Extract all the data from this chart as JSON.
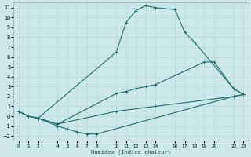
{
  "xlabel": "Humidex (Indice chaleur)",
  "bg_color": "#cce8e8",
  "grid_color": "#b8d8d8",
  "line_color": "#1a6e6e",
  "xlim": [
    -0.5,
    23.5
  ],
  "ylim": [
    -2.5,
    11.5
  ],
  "xticks": [
    0,
    1,
    2,
    4,
    5,
    6,
    7,
    8,
    10,
    11,
    12,
    13,
    14,
    16,
    17,
    18,
    19,
    20,
    22,
    23
  ],
  "yticks": [
    -2,
    -1,
    0,
    1,
    2,
    3,
    4,
    5,
    6,
    7,
    8,
    9,
    10,
    11
  ],
  "lines": [
    {
      "x": [
        0,
        1,
        2,
        10,
        11,
        12,
        13,
        14,
        16,
        17,
        18,
        22,
        23
      ],
      "y": [
        0.5,
        0.0,
        -0.2,
        6.5,
        9.5,
        10.7,
        11.2,
        11.0,
        10.8,
        8.5,
        7.5,
        2.8,
        2.2
      ]
    },
    {
      "x": [
        0,
        1,
        2,
        4,
        10,
        11,
        12,
        13,
        14,
        19,
        20,
        22,
        23
      ],
      "y": [
        0.5,
        0.0,
        -0.2,
        -0.8,
        2.3,
        2.5,
        2.8,
        3.0,
        3.2,
        5.5,
        5.5,
        2.8,
        2.2
      ]
    },
    {
      "x": [
        0,
        1,
        2,
        4,
        5,
        6,
        7,
        8,
        22,
        23
      ],
      "y": [
        0.5,
        0.0,
        -0.2,
        -1.0,
        -1.3,
        -1.6,
        -1.8,
        -1.8,
        2.0,
        2.2
      ]
    },
    {
      "x": [
        0,
        1,
        2,
        4,
        10,
        14,
        22,
        23
      ],
      "y": [
        0.5,
        0.0,
        -0.2,
        -0.8,
        0.5,
        1.0,
        2.0,
        2.2
      ]
    }
  ]
}
